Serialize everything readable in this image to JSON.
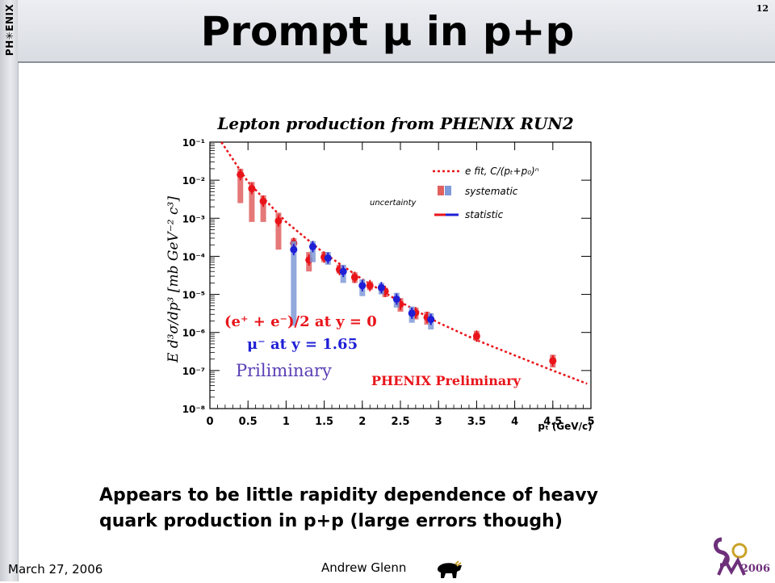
{
  "slide": {
    "title": "Prompt μ in p+p",
    "page_number": "12",
    "logo_text": "PH✳ENIX",
    "caption_line1": "Appears to be little rapidity dependence of heavy",
    "caption_line2": "quark production in p+p (large errors though)",
    "date": "March 27, 2006",
    "author": "Andrew Glenn",
    "conference_logo_text": "2006"
  },
  "chart_data": {
    "type": "scatter",
    "title": "Lepton production from PHENIX RUN2",
    "xlabel": "pₜ (GeV/c)",
    "ylabel": "E d³σ/dp³ [mb GeV⁻² c³]",
    "xlim": [
      0,
      5
    ],
    "ylim_log10": [
      -8,
      -1
    ],
    "log_y": true,
    "x_ticks": [
      "0",
      "0.5",
      "1",
      "1.5",
      "2",
      "2.5",
      "3",
      "3.5",
      "4",
      "4.5",
      "5"
    ],
    "y_ticks": [
      "10⁻¹",
      "10⁻²",
      "10⁻³",
      "10⁻⁴",
      "10⁻⁵",
      "10⁻⁶",
      "10⁻⁷",
      "10⁻⁸"
    ],
    "legend": {
      "fit": "e fit, C/(pₜ+p₀)ⁿ",
      "systematic": "systematic",
      "uncertainty": "uncertainty",
      "statistic": "statistic"
    },
    "annotations": {
      "electrons": "(e⁺ + e⁻)/2 at y = 0",
      "muons": "μ⁻ at y = 1.65",
      "preliminary": "Priliminary",
      "phenix_preliminary": "PHENIX Preliminary"
    },
    "colors": {
      "electron": "#e8141a",
      "electron_sys": "#e06060",
      "muon": "#1f1fd6",
      "muon_sys": "#7f9ad8",
      "fit": "#e8141a",
      "prelim_text": "#5a3fb5"
    },
    "fit_curve": [
      {
        "x": 0.15,
        "y": 0.1
      },
      {
        "x": 0.5,
        "y": 0.009
      },
      {
        "x": 1.0,
        "y": 0.0008
      },
      {
        "x": 1.5,
        "y": 0.00012
      },
      {
        "x": 2.0,
        "y": 2.5e-05
      },
      {
        "x": 2.5,
        "y": 6.3e-06
      },
      {
        "x": 3.0,
        "y": 1.8e-06
      },
      {
        "x": 3.5,
        "y": 6.3e-07
      },
      {
        "x": 4.0,
        "y": 2.5e-07
      },
      {
        "x": 4.5,
        "y": 1e-07
      },
      {
        "x": 4.95,
        "y": 4.5e-08
      }
    ],
    "series": [
      {
        "name": "(e⁺ + e⁻)/2 at y = 0",
        "color": "#e8141a",
        "points": [
          {
            "x": 0.4,
            "y": 0.014,
            "ylo": 0.0025,
            "yhi": 0.02
          },
          {
            "x": 0.55,
            "y": 0.006,
            "ylo": 0.0008,
            "yhi": 0.009
          },
          {
            "x": 0.7,
            "y": 0.0028,
            "ylo": 0.0008,
            "yhi": 0.004
          },
          {
            "x": 0.9,
            "y": 0.00085,
            "ylo": 0.00015,
            "yhi": 0.0014
          },
          {
            "x": 1.1,
            "y": 0.00022,
            "ylo": 0.00014,
            "yhi": 0.0003
          },
          {
            "x": 1.3,
            "y": 8e-05,
            "ylo": 4e-05,
            "yhi": 0.00013
          },
          {
            "x": 1.5,
            "y": 9.5e-05,
            "ylo": 7e-05,
            "yhi": 0.00013
          },
          {
            "x": 1.7,
            "y": 4.5e-05,
            "ylo": 3.5e-05,
            "yhi": 6e-05
          },
          {
            "x": 1.9,
            "y": 2.8e-05,
            "ylo": 2e-05,
            "yhi": 3.8e-05
          },
          {
            "x": 2.1,
            "y": 1.7e-05,
            "ylo": 1.3e-05,
            "yhi": 2.2e-05
          },
          {
            "x": 2.3,
            "y": 1.2e-05,
            "ylo": 8.5e-06,
            "yhi": 1.5e-05
          },
          {
            "x": 2.5,
            "y": 5.5e-06,
            "ylo": 3.5e-06,
            "yhi": 8e-06
          },
          {
            "x": 2.7,
            "y": 3.3e-06,
            "ylo": 2.2e-06,
            "yhi": 4.5e-06
          },
          {
            "x": 2.85,
            "y": 2.5e-06,
            "ylo": 1.6e-06,
            "yhi": 3.5e-06
          },
          {
            "x": 3.5,
            "y": 8e-07,
            "ylo": 6e-07,
            "yhi": 1.1e-06
          },
          {
            "x": 4.5,
            "y": 1.8e-07,
            "ylo": 1.2e-07,
            "yhi": 2.6e-07
          }
        ]
      },
      {
        "name": "μ⁻ at y = 1.65",
        "color": "#1f1fd6",
        "points": [
          {
            "x": 1.1,
            "y": 0.00015,
            "ylo": 1.5e-06,
            "yhi": 0.00025
          },
          {
            "x": 1.35,
            "y": 0.00018,
            "ylo": 7e-05,
            "yhi": 0.00025
          },
          {
            "x": 1.55,
            "y": 9e-05,
            "ylo": 6e-05,
            "yhi": 0.00013
          },
          {
            "x": 1.75,
            "y": 4e-05,
            "ylo": 2e-05,
            "yhi": 6e-05
          },
          {
            "x": 2.0,
            "y": 1.7e-05,
            "ylo": 9e-06,
            "yhi": 2.5e-05
          },
          {
            "x": 2.25,
            "y": 1.5e-05,
            "ylo": 1e-05,
            "yhi": 2e-05
          },
          {
            "x": 2.45,
            "y": 7.5e-06,
            "ylo": 4.5e-06,
            "yhi": 1.1e-05
          },
          {
            "x": 2.65,
            "y": 3.2e-06,
            "ylo": 1.8e-06,
            "yhi": 4.8e-06
          },
          {
            "x": 2.9,
            "y": 2.2e-06,
            "ylo": 1.2e-06,
            "yhi": 3.2e-06
          }
        ]
      }
    ]
  }
}
